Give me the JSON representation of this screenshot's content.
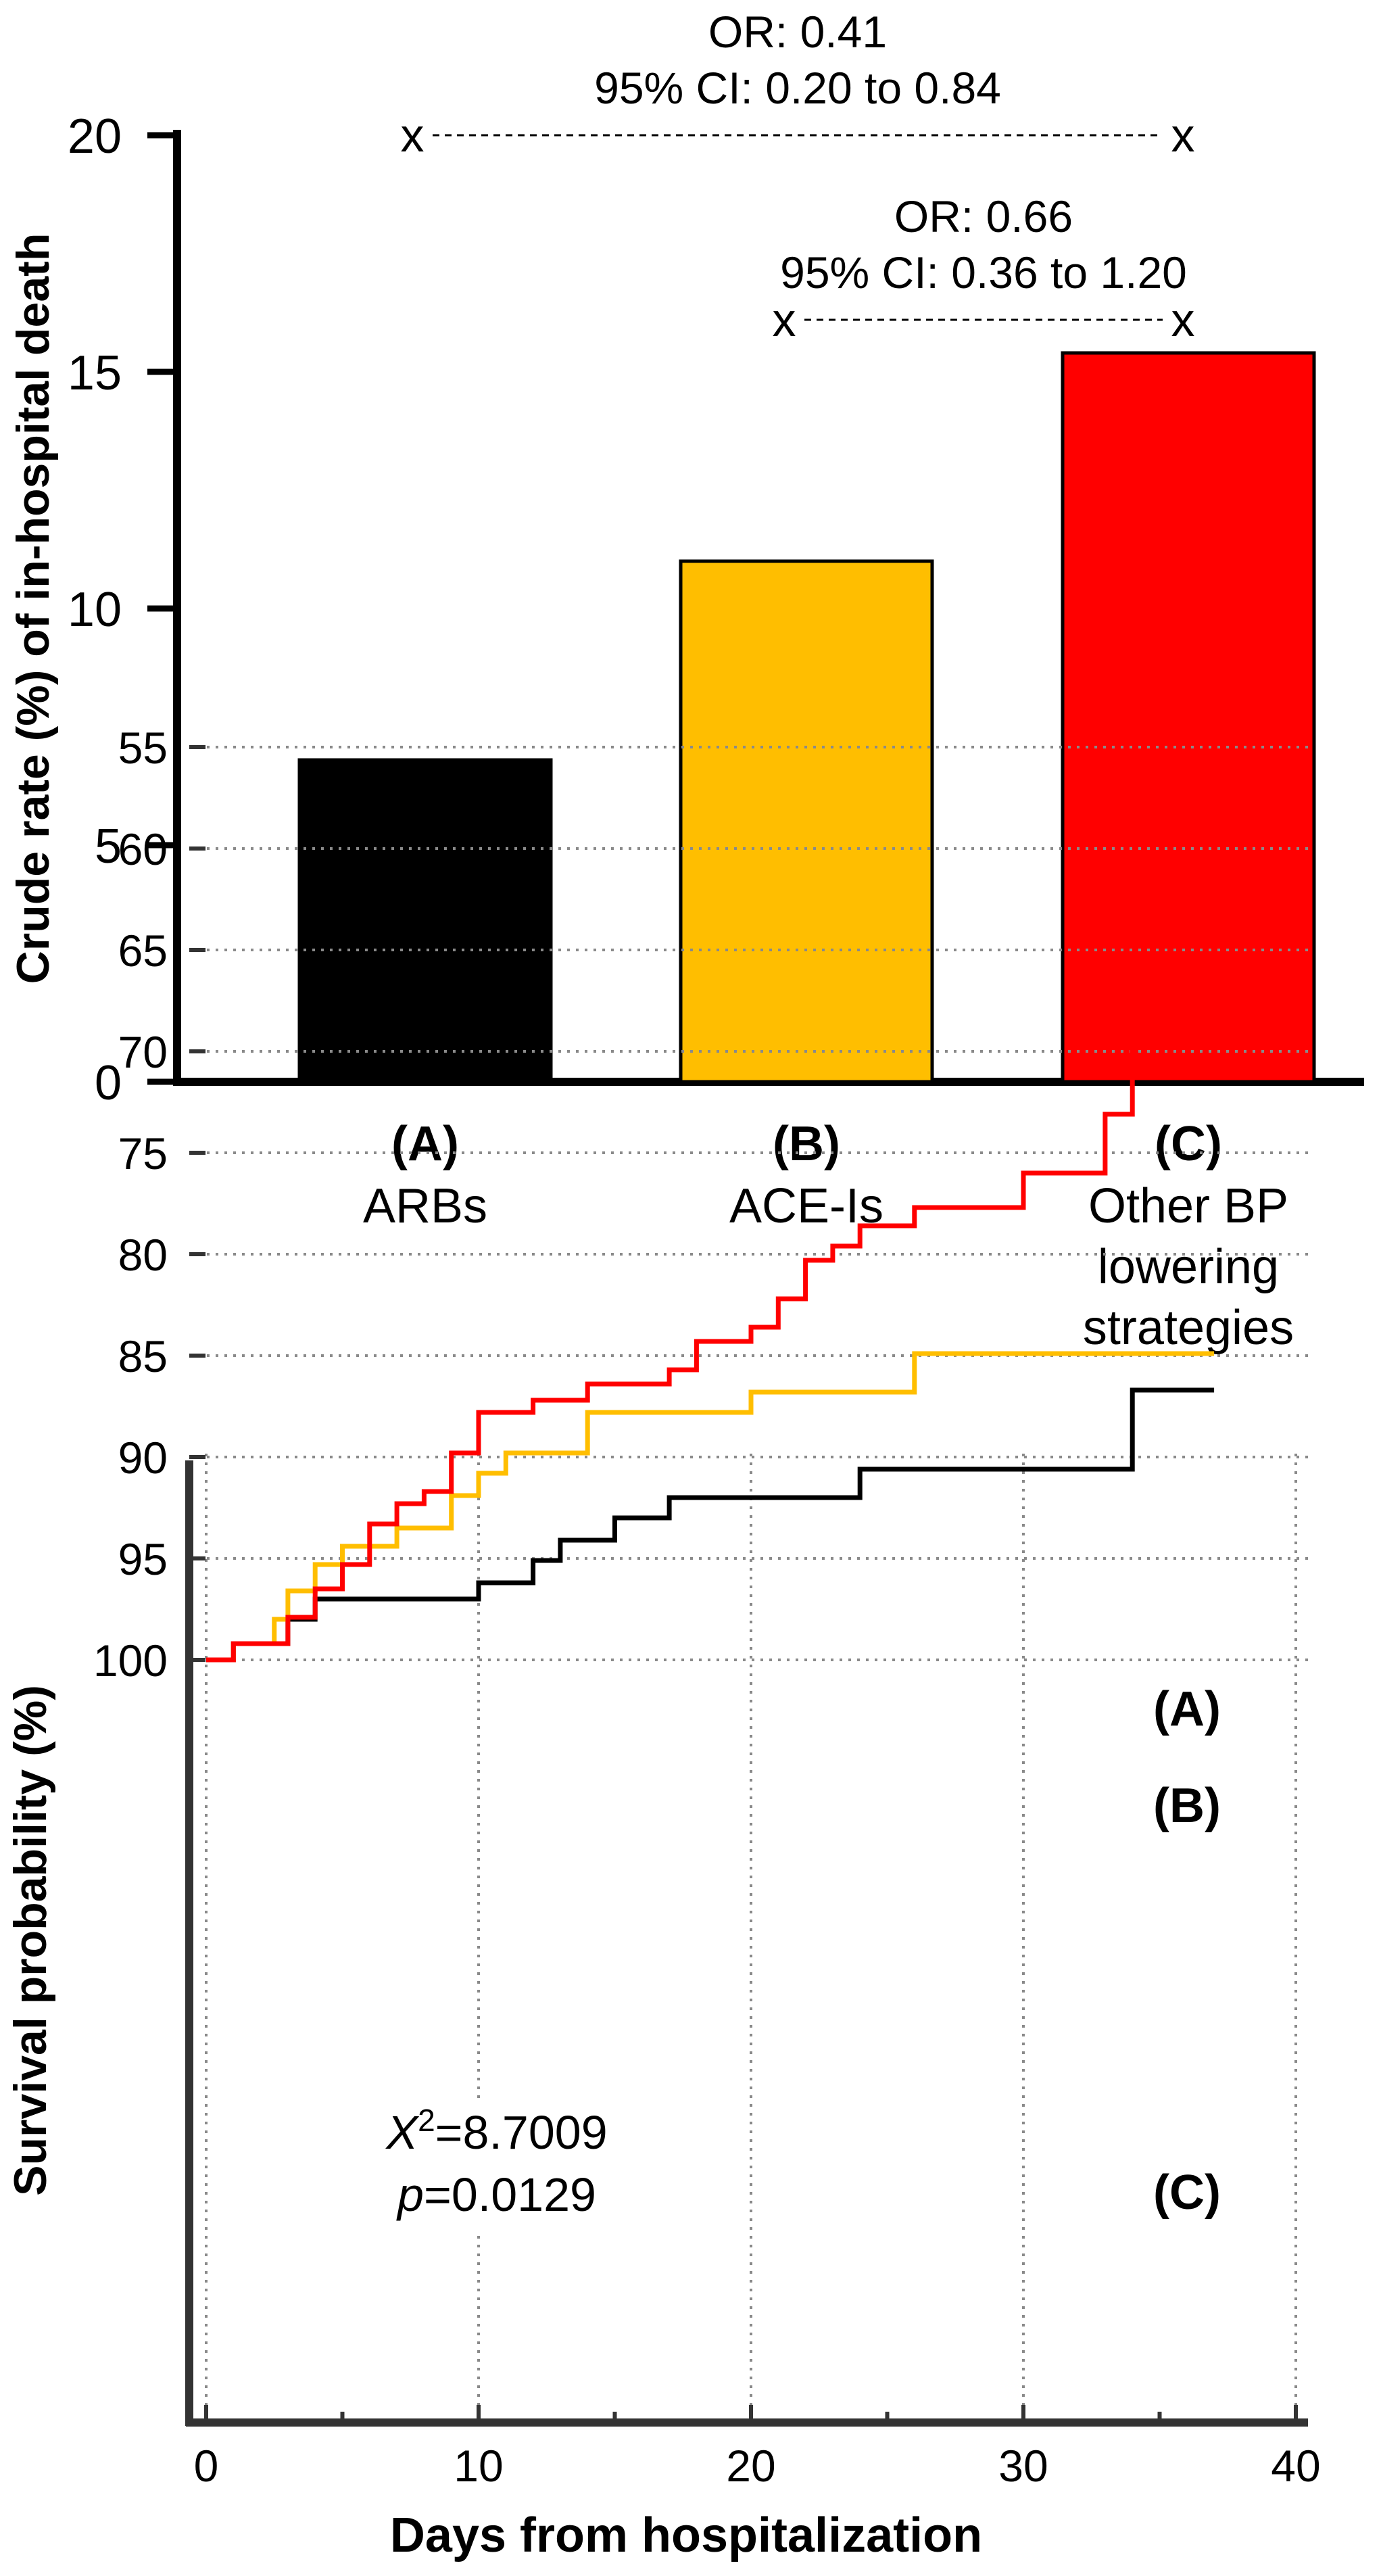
{
  "chart_data": [
    {
      "type": "bar",
      "ylabel": "Crude rate (%) of in-hospital death",
      "ylim": [
        0,
        20
      ],
      "yticks": [
        0,
        5,
        10,
        15,
        20
      ],
      "categories": [
        {
          "code": "(A)",
          "lines": [
            "ARBs"
          ],
          "value": 6.8,
          "color": "#000000"
        },
        {
          "code": "(B)",
          "lines": [
            "ACE-Is"
          ],
          "value": 11.0,
          "color": "#FFBE00"
        },
        {
          "code": "(C)",
          "lines": [
            "Other BP",
            "lowering",
            "strategies"
          ],
          "value": 15.4,
          "color": "#FF0000"
        }
      ],
      "annotations": [
        {
          "or": "OR: 0.41",
          "ci": "95% CI: 0.20 to 0.84",
          "from": "(A)",
          "to": "(C)",
          "level": 20
        },
        {
          "or": "OR: 0.66",
          "ci": "95% CI: 0.36 to 1.20",
          "from": "(B)",
          "to": "(C)",
          "level": 16.1
        }
      ],
      "marker": "x"
    },
    {
      "type": "line",
      "subtype": "kaplan-meier",
      "xlabel": "Days from hospitalization",
      "ylabel": "Survival probability (%)",
      "xlim": [
        -1,
        41
      ],
      "ylim": [
        55,
        100.5
      ],
      "xticks": [
        0,
        10,
        20,
        30,
        40
      ],
      "yticks": [
        55,
        60,
        65,
        70,
        75,
        80,
        85,
        90,
        95,
        100
      ],
      "grid": true,
      "stat_label": "X",
      "stat_sup": "2",
      "stat_value": "=8.7009",
      "p_label": "p",
      "p_value": "=0.0129",
      "series": [
        {
          "name": "(A)",
          "color": "#000000",
          "x": [
            0,
            1,
            2,
            3,
            4,
            10,
            12,
            13,
            15,
            17,
            24,
            34,
            37
          ],
          "y": [
            100,
            99.2,
            99.2,
            98.0,
            97.0,
            96.2,
            95.1,
            94.1,
            93.0,
            92.0,
            90.6,
            86.7,
            86.7
          ]
        },
        {
          "name": "(B)",
          "color": "#FFBE00",
          "x": [
            0,
            1,
            2,
            2.5,
            3,
            4,
            5,
            7,
            9,
            10,
            11,
            14,
            20,
            26,
            37
          ],
          "y": [
            100,
            99.2,
            99.2,
            98.0,
            96.6,
            95.3,
            94.4,
            93.5,
            91.9,
            90.8,
            89.8,
            87.8,
            86.8,
            84.9,
            84.9
          ]
        },
        {
          "name": "(C)",
          "color": "#FF0000",
          "x": [
            0,
            1,
            3,
            4,
            5,
            6,
            7,
            8,
            9,
            10,
            12,
            14,
            17,
            18,
            20,
            21,
            22,
            23,
            24,
            26,
            30,
            33,
            34,
            37.5
          ],
          "y": [
            100,
            99.2,
            97.9,
            96.5,
            95.3,
            93.3,
            92.3,
            91.7,
            89.8,
            87.8,
            87.2,
            86.4,
            85.7,
            84.3,
            83.6,
            82.2,
            80.3,
            79.6,
            78.6,
            77.7,
            76.0,
            73.1,
            69.8,
            69.8
          ]
        }
      ]
    }
  ]
}
